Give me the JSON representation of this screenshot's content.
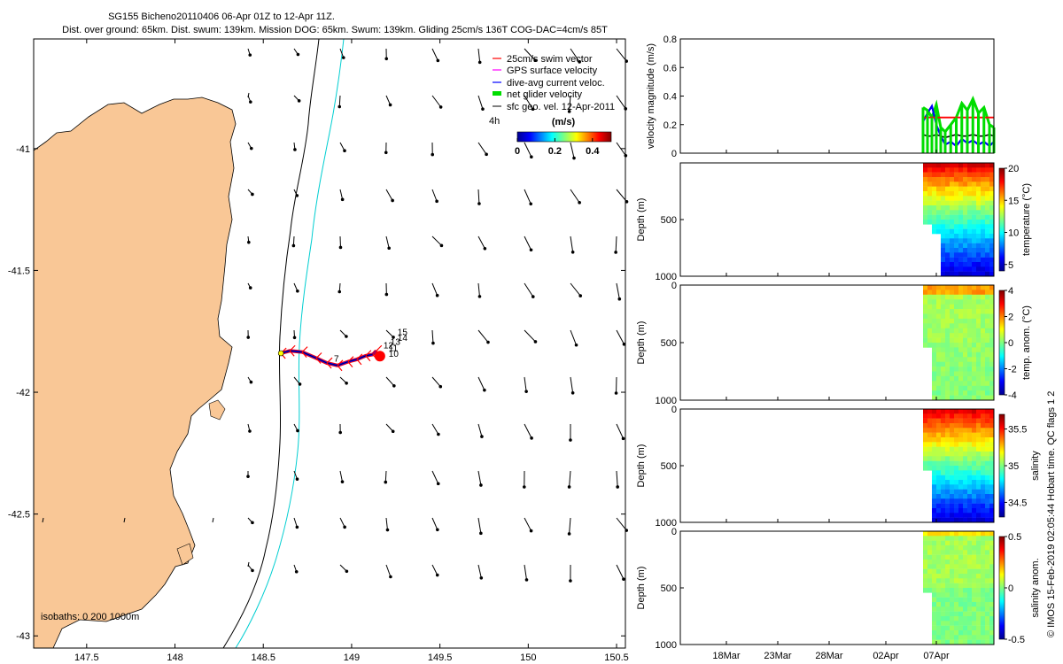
{
  "header": {
    "title_line1": "SG155 Bicheno20110406 06-Apr 01Z to 12-Apr 11Z.",
    "title_line2": "Dist. over ground: 65km. Dist. swum: 139km. Mission DOG: 65km. Swum: 139km. Gliding 25cm/s 136T COG-DAC=4cm/s 85T"
  },
  "credit": "© IMOS 15-Feb-2019 02:05:44 Hobart time. QC flags 1  2",
  "colors": {
    "land": "#f9c796",
    "swim_vector": "#ff0000",
    "gps_velocity": "#ff00ff",
    "dac": "#0000ff",
    "net_velocity": "#00dd00",
    "sfc_vel": "#000000",
    "isobath_200": "#000000",
    "isobath_1000": "#00ced1"
  },
  "chart_data": [
    {
      "id": "map",
      "type": "scatter",
      "title": "",
      "xlim": [
        147.2,
        150.55
      ],
      "ylim": [
        -43.05,
        -40.55
      ],
      "xticks": [
        147.5,
        148,
        148.5,
        149,
        149.5,
        150,
        150.5
      ],
      "xtick_labels": [
        "147.5",
        "148",
        "148.5",
        "149",
        "149.5",
        "150",
        "150.5"
      ],
      "yticks": [
        -41,
        -41.5,
        -42,
        -42.5,
        -43
      ],
      "ytick_labels": [
        "-41",
        "-41.5",
        "-42",
        "-42.5",
        "-43"
      ],
      "legend": {
        "placement": "top-right",
        "entries": [
          "25cm/s swim vector",
          "GPS surface velocity",
          "dive-avg current veloc.",
          "net glider velocity",
          "sfc geo. vel. 12-Apr-2011"
        ]
      },
      "colorbar": {
        "label": "(m/s)",
        "side_label": "4h",
        "ticks": [
          0,
          0.2,
          0.4
        ],
        "tick_labels": [
          "0",
          "0.2",
          "0.4"
        ],
        "range": [
          0,
          0.5
        ]
      },
      "isobath_label": "isobaths: 0   200  1000m",
      "glider_track": {
        "lon": [
          148.6,
          148.65,
          148.72,
          148.8,
          148.86,
          148.92,
          148.98,
          149.03,
          149.08,
          149.12,
          149.14
        ],
        "lat": [
          -41.84,
          -41.83,
          -41.835,
          -41.86,
          -41.88,
          -41.89,
          -41.875,
          -41.865,
          -41.85,
          -41.845,
          -41.83
        ]
      },
      "track_labels": [
        {
          "text": "7",
          "lon": 148.9,
          "lat": -41.875
        },
        {
          "text": "10",
          "lon": 149.21,
          "lat": -41.855
        },
        {
          "text": "11",
          "lon": 149.21,
          "lat": -41.83
        },
        {
          "text": "12",
          "lon": 149.18,
          "lat": -41.82
        },
        {
          "text": "13",
          "lon": 149.22,
          "lat": -41.805
        },
        {
          "text": "14",
          "lon": 149.26,
          "lat": -41.79
        },
        {
          "text": "15",
          "lon": 149.26,
          "lat": -41.765
        }
      ]
    },
    {
      "id": "velocity",
      "type": "line",
      "ylabel": "velocity magnitude (m/s)",
      "ylim": [
        0,
        0.8
      ],
      "yticks": [
        0,
        0.2,
        0.4,
        0.6,
        0.8
      ],
      "ytick_labels": [
        "0",
        "0.2",
        "0.4",
        "0.6",
        "0.8"
      ],
      "x_days": [
        0.0,
        0.4,
        0.8,
        1.2,
        1.6,
        2.0,
        2.5,
        3.0,
        3.5,
        4.0,
        4.5,
        5.0,
        5.5,
        6.0,
        6.4
      ],
      "x_origin": "06-Apr",
      "series": [
        {
          "values": [
            0.25,
            0.25,
            0.25,
            0.25,
            0.25,
            0.25,
            0.25,
            0.25,
            0.25,
            0.25,
            0.25,
            0.25,
            0.25,
            0.25,
            0.25
          ]
        },
        {
          "values": [
            0.22,
            0.28,
            0.33,
            0.2,
            0.12,
            0.06,
            0.08,
            0.05,
            0.1,
            0.07,
            0.09,
            0.06,
            0.08,
            0.05,
            0.08
          ]
        },
        {
          "values": [
            0.32,
            0.3,
            0.25,
            0.34,
            0.18,
            0.15,
            0.2,
            0.25,
            0.35,
            0.3,
            0.38,
            0.28,
            0.32,
            0.2,
            0.18
          ]
        },
        {
          "values": [
            0.13,
            0.12,
            0.12,
            0.13,
            0.12,
            0.11,
            0.12,
            0.13,
            0.12,
            0.12,
            0.13,
            0.12,
            0.12,
            0.13,
            0.12
          ]
        }
      ]
    },
    {
      "id": "temperature",
      "type": "heatmap",
      "ylabel": "Depth (m)",
      "colorbar_label": "temperature (°C)",
      "yticks": [
        500,
        1000
      ],
      "ytick_labels": [
        "500",
        "1000"
      ],
      "clim": [
        4,
        20
      ],
      "cticks": [
        5,
        10,
        15,
        20
      ],
      "ctick_labels": [
        "5",
        "10",
        "15",
        "20"
      ]
    },
    {
      "id": "temp_anom",
      "type": "heatmap",
      "ylabel": "Depth (m)",
      "colorbar_label": "temp. anom. (°C)",
      "yticks": [
        0,
        500,
        1000
      ],
      "ytick_labels": [
        "0",
        "500",
        "1000"
      ],
      "clim": [
        -4,
        4
      ],
      "cticks": [
        -4,
        -2,
        0,
        2,
        4
      ],
      "ctick_labels": [
        "-4",
        "-2",
        "0",
        "2",
        "4"
      ]
    },
    {
      "id": "salinity",
      "type": "heatmap",
      "ylabel": "Depth (m)",
      "colorbar_label": "salinity",
      "yticks": [
        0,
        500,
        1000
      ],
      "ytick_labels": [
        "0",
        "500",
        "1000"
      ],
      "clim": [
        34.3,
        35.7
      ],
      "cticks": [
        34.5,
        35,
        35.5
      ],
      "ctick_labels": [
        "34.5",
        "35",
        "35.5"
      ]
    },
    {
      "id": "sal_anom",
      "type": "heatmap",
      "ylabel": "Depth (m)",
      "colorbar_label": "salinity anom.",
      "yticks": [
        0,
        500,
        1000
      ],
      "ytick_labels": [
        "0",
        "500",
        "1000"
      ],
      "clim": [
        -0.5,
        0.5
      ],
      "cticks": [
        -0.5,
        0,
        0.5
      ],
      "ctick_labels": [
        "-0.5",
        "0",
        "0.5"
      ],
      "xtick_labels": [
        "18Mar",
        "23Mar",
        "28Mar",
        "02Apr",
        "07Apr"
      ]
    }
  ]
}
